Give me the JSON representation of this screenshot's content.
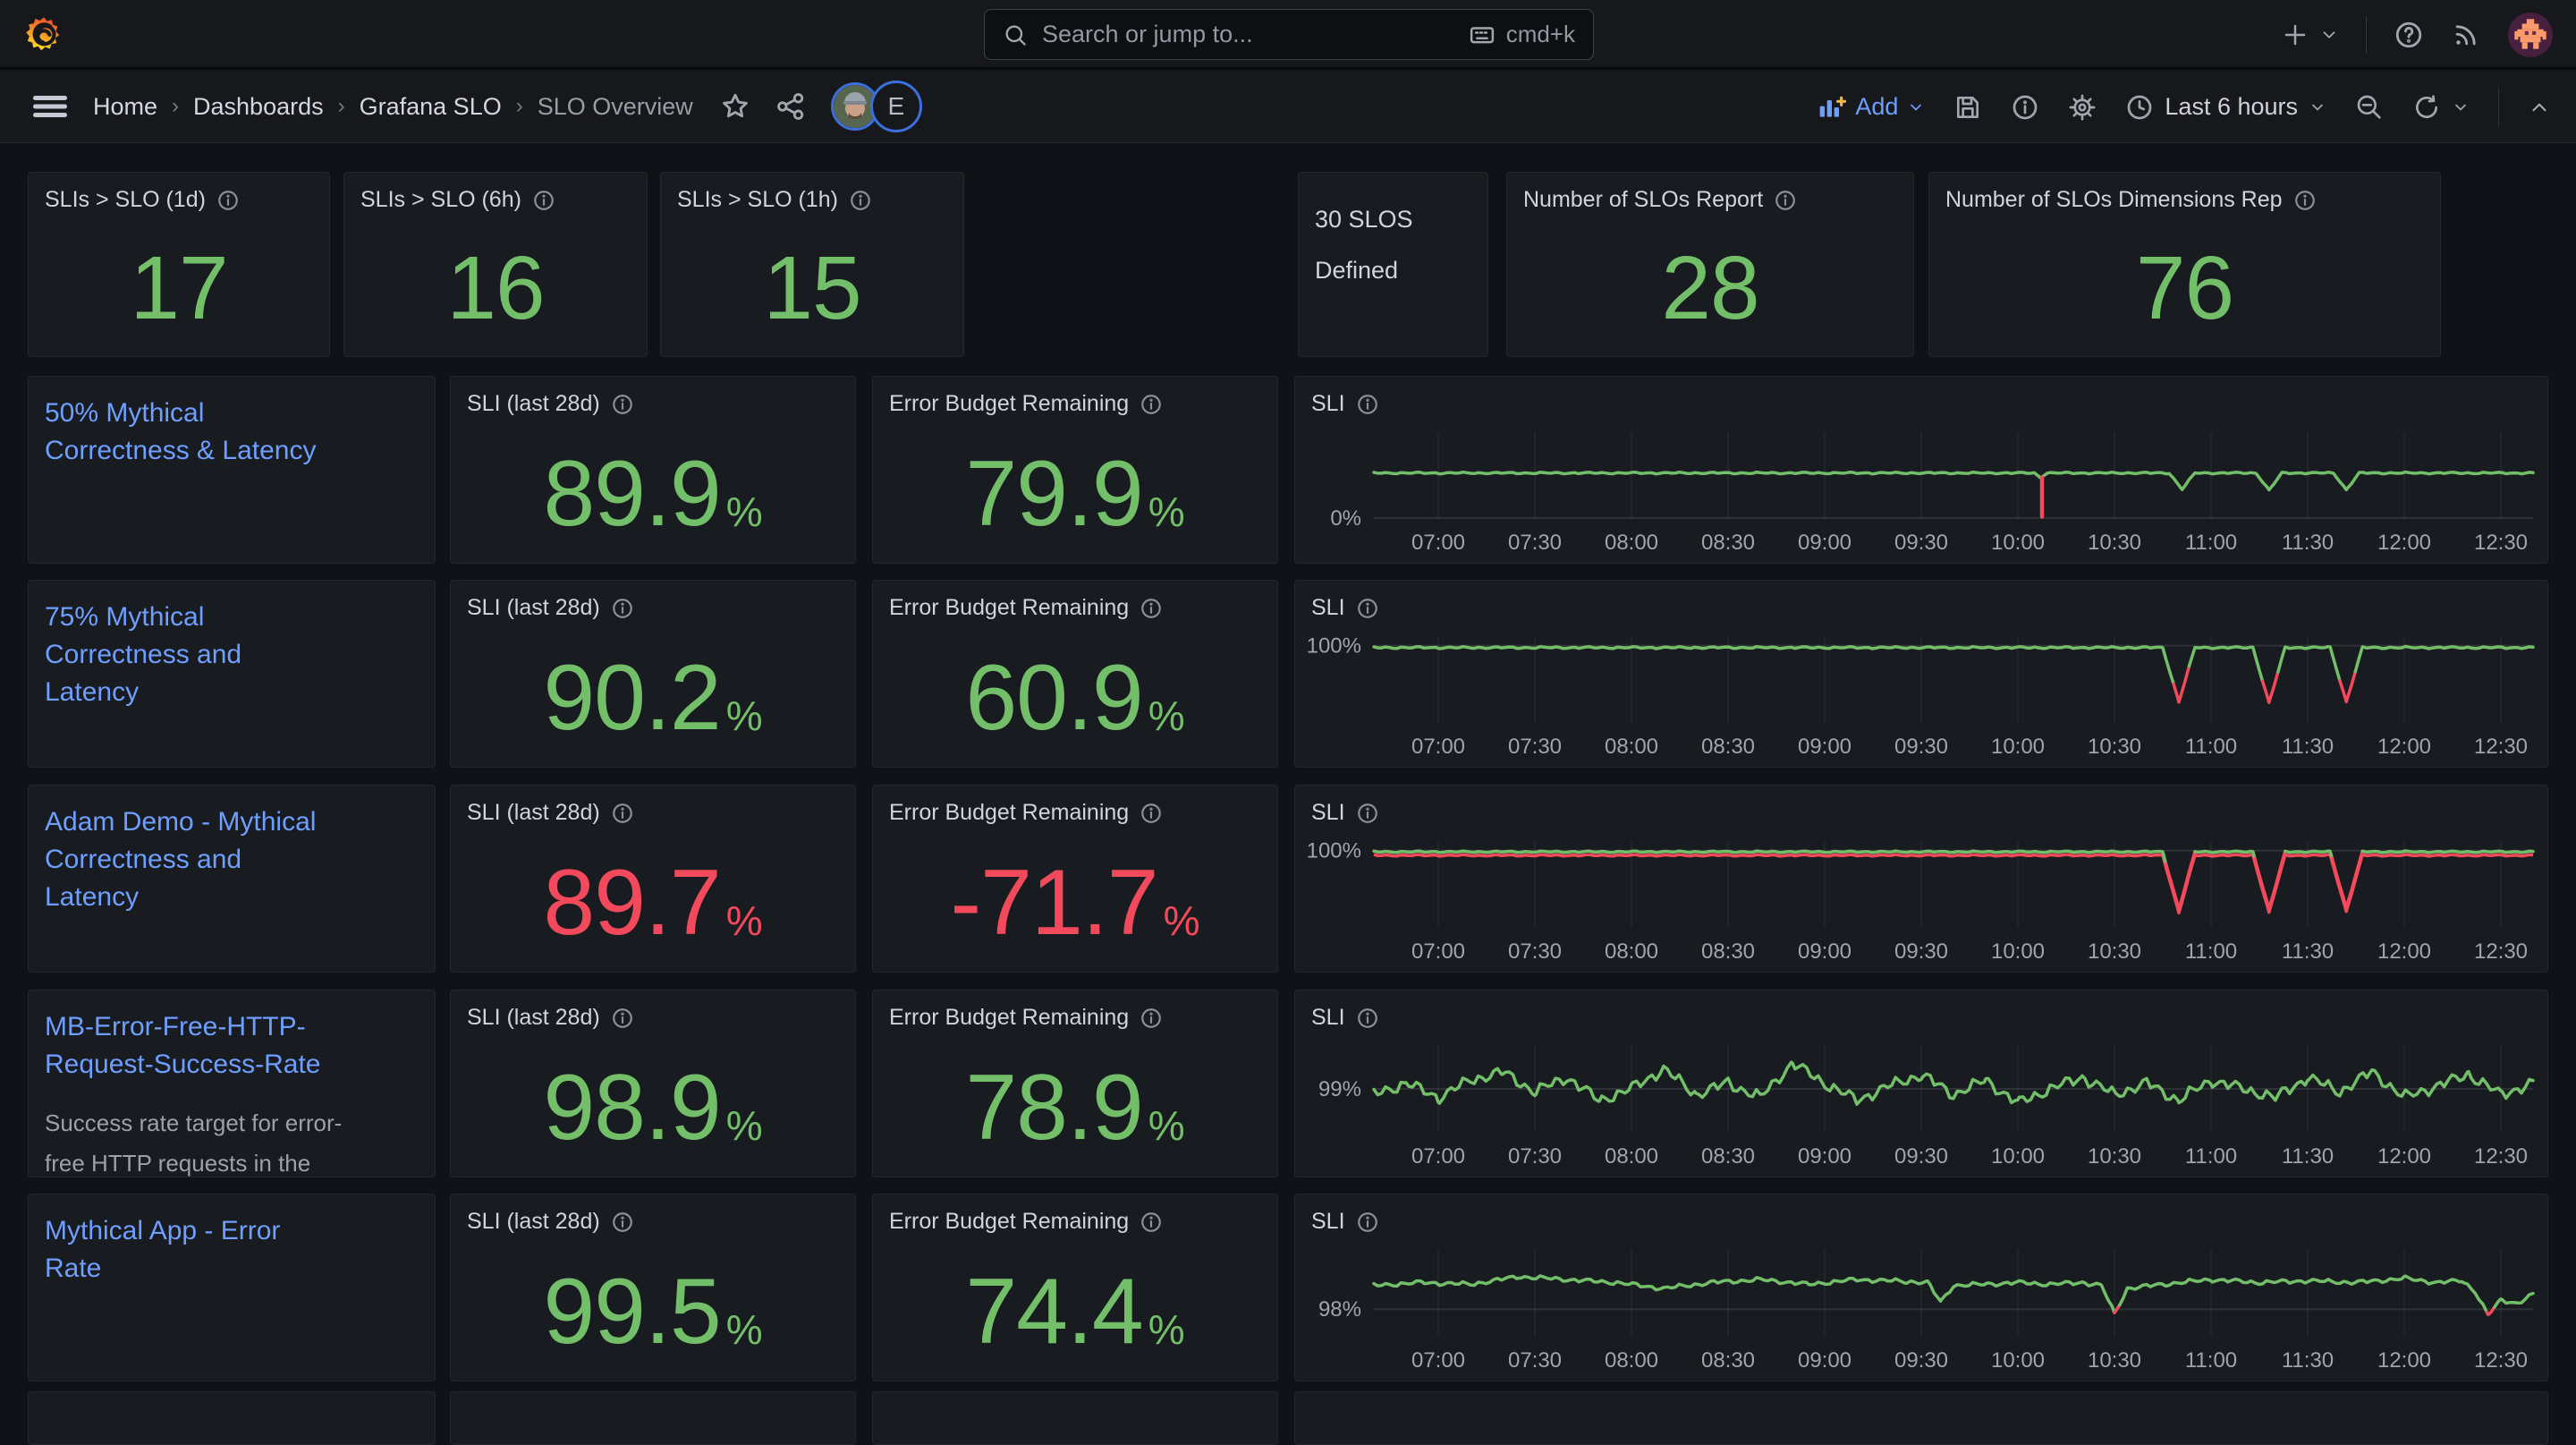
{
  "topbar": {
    "search_placeholder": "Search or jump to...",
    "search_shortcut": "cmd+k"
  },
  "breadcrumb": {
    "items": [
      "Home",
      "Dashboards",
      "Grafana SLO",
      "SLO Overview"
    ]
  },
  "user": {
    "secondary_avatar_letter": "E"
  },
  "toolbar": {
    "add_label": "Add",
    "time_range": "Last 6 hours"
  },
  "colors": {
    "green": "#73bf69",
    "red": "#f2495c",
    "link": "#6e9fff"
  },
  "percent_suffix": "%",
  "stat_panels": [
    {
      "title": "SLIs > SLO (1d)",
      "value": "17",
      "color": "green"
    },
    {
      "title": "SLIs > SLO (6h)",
      "value": "16",
      "color": "green"
    },
    {
      "title": "SLIs > SLO (1h)",
      "value": "15",
      "color": "green"
    }
  ],
  "defined_panel": {
    "text": "30 SLOS\nDefined"
  },
  "count_panels": [
    {
      "title": "Number of SLOs Report",
      "value": "28",
      "color": "green"
    },
    {
      "title": "Number of SLOs Dimensions Rep",
      "value": "76",
      "color": "green"
    }
  ],
  "slo_rows": [
    {
      "name": "50% Mythical\nCorrectness & Latency",
      "desc": "",
      "sli_title": "SLI (last 28d)",
      "sli": "89.9",
      "sli_color": "green",
      "ebr_title": "Error Budget Remaining",
      "ebr": "79.9",
      "ebr_color": "green",
      "chart_title": "SLI"
    },
    {
      "name": "75% Mythical\nCorrectness and\nLatency",
      "desc": "",
      "sli_title": "SLI (last 28d)",
      "sli": "90.2",
      "sli_color": "green",
      "ebr_title": "Error Budget Remaining",
      "ebr": "60.9",
      "ebr_color": "green",
      "chart_title": "SLI"
    },
    {
      "name": "Adam Demo - Mythical\nCorrectness and\nLatency",
      "desc": "",
      "sli_title": "SLI (last 28d)",
      "sli": "89.7",
      "sli_color": "red",
      "ebr_title": "Error Budget Remaining",
      "ebr": "-71.7",
      "ebr_color": "red",
      "chart_title": "SLI"
    },
    {
      "name": "MB-Error-Free-HTTP-\nRequest-Success-Rate",
      "desc": "Success rate target for error-\nfree HTTP requests in the",
      "sli_title": "SLI (last 28d)",
      "sli": "98.9",
      "sli_color": "green",
      "ebr_title": "Error Budget Remaining",
      "ebr": "78.9",
      "ebr_color": "green",
      "chart_title": "SLI"
    },
    {
      "name": "Mythical App - Error\nRate",
      "desc": "",
      "sli_title": "SLI (last 28d)",
      "sli": "99.5",
      "sli_color": "green",
      "ebr_title": "Error Budget Remaining",
      "ebr": "74.4",
      "ebr_color": "green",
      "chart_title": "SLI"
    }
  ],
  "chart_data": [
    {
      "type": "line",
      "title": "SLI",
      "x_domain": [
        400,
        760
      ],
      "x_tick_minutes": [
        420,
        450,
        480,
        510,
        540,
        570,
        600,
        630,
        660,
        690,
        720,
        750
      ],
      "x_tick_labels": [
        "07:00",
        "07:30",
        "08:00",
        "08:30",
        "09:00",
        "09:30",
        "10:00",
        "10:30",
        "11:00",
        "11:30",
        "12:00",
        "12:30"
      ],
      "y_domain": [
        0,
        185
      ],
      "y_tick": {
        "value": 0,
        "label": "0%"
      },
      "threshold": null,
      "jitter": 2.2,
      "points": [
        [
          400,
          97
        ],
        [
          605,
          97
        ],
        [
          607,
          88
        ],
        [
          609,
          97
        ],
        [
          647,
          97
        ],
        [
          651,
          62
        ],
        [
          655,
          97
        ],
        [
          674,
          97
        ],
        [
          678,
          60
        ],
        [
          682,
          97
        ],
        [
          698,
          97
        ],
        [
          702,
          61
        ],
        [
          706,
          97
        ],
        [
          760,
          97
        ]
      ],
      "red_spikes": [
        [
          607.5,
          88,
          3
        ]
      ]
    },
    {
      "type": "line",
      "title": "SLI",
      "x_domain": [
        400,
        760
      ],
      "x_tick_minutes": [
        420,
        450,
        480,
        510,
        540,
        570,
        600,
        630,
        660,
        690,
        720,
        750
      ],
      "x_tick_labels": [
        "07:00",
        "07:30",
        "08:00",
        "08:30",
        "09:00",
        "09:30",
        "10:00",
        "10:30",
        "11:00",
        "11:30",
        "12:00",
        "12:30"
      ],
      "y_domain": [
        68,
        104
      ],
      "y_tick": {
        "value": 100,
        "label": "100%"
      },
      "threshold": 86,
      "jitter": 0.5,
      "points": [
        [
          400,
          99.2
        ],
        [
          645,
          99.2
        ],
        [
          650,
          76.5
        ],
        [
          655,
          99.2
        ],
        [
          673,
          99.2
        ],
        [
          678,
          76
        ],
        [
          683,
          99.2
        ],
        [
          697,
          99.2
        ],
        [
          702,
          76.5
        ],
        [
          707,
          99.2
        ],
        [
          760,
          99.2
        ]
      ]
    },
    {
      "type": "line",
      "title": "SLI",
      "x_domain": [
        400,
        760
      ],
      "x_tick_minutes": [
        420,
        450,
        480,
        510,
        540,
        570,
        600,
        630,
        660,
        690,
        720,
        750
      ],
      "x_tick_labels": [
        "07:00",
        "07:30",
        "08:00",
        "08:30",
        "09:00",
        "09:30",
        "10:00",
        "10:30",
        "11:00",
        "11:30",
        "12:00",
        "12:30"
      ],
      "y_domain": [
        68,
        104
      ],
      "y_tick": {
        "value": 100,
        "label": "100%"
      },
      "threshold": 99.0,
      "jitter": 0.4,
      "underlay": true,
      "points": [
        [
          400,
          99.5
        ],
        [
          645,
          99.5
        ],
        [
          650,
          75.5
        ],
        [
          655,
          99.5
        ],
        [
          673,
          99.5
        ],
        [
          678,
          75.5
        ],
        [
          683,
          99.5
        ],
        [
          697,
          99.5
        ],
        [
          702,
          76
        ],
        [
          707,
          99.5
        ],
        [
          760,
          99.5
        ]
      ]
    },
    {
      "type": "line",
      "title": "SLI",
      "x_domain": [
        400,
        760
      ],
      "x_tick_minutes": [
        420,
        450,
        480,
        510,
        540,
        570,
        600,
        630,
        660,
        690,
        720,
        750
      ],
      "x_tick_labels": [
        "07:00",
        "07:30",
        "08:00",
        "08:30",
        "09:00",
        "09:30",
        "10:00",
        "10:30",
        "11:00",
        "11:30",
        "12:00",
        "12:30"
      ],
      "y_domain": [
        98.25,
        99.75
      ],
      "y_tick": {
        "value": 99,
        "label": "99%"
      },
      "threshold": null,
      "jitter": 0.13,
      "points": [
        [
          400,
          98.9
        ],
        [
          410,
          99.1
        ],
        [
          420,
          98.85
        ],
        [
          430,
          99.15
        ],
        [
          440,
          99.3
        ],
        [
          450,
          98.95
        ],
        [
          460,
          99.2
        ],
        [
          470,
          98.8
        ],
        [
          480,
          99.0
        ],
        [
          490,
          99.35
        ],
        [
          500,
          98.9
        ],
        [
          510,
          99.1
        ],
        [
          520,
          98.85
        ],
        [
          530,
          99.45
        ],
        [
          540,
          99.1
        ],
        [
          550,
          98.8
        ],
        [
          560,
          99.05
        ],
        [
          570,
          99.25
        ],
        [
          580,
          98.9
        ],
        [
          590,
          99.15
        ],
        [
          600,
          98.75
        ],
        [
          610,
          99.0
        ],
        [
          620,
          99.2
        ],
        [
          630,
          98.9
        ],
        [
          640,
          99.1
        ],
        [
          650,
          98.8
        ],
        [
          660,
          99.15
        ],
        [
          670,
          99.0
        ],
        [
          680,
          98.85
        ],
        [
          690,
          99.2
        ],
        [
          700,
          98.95
        ],
        [
          710,
          99.3
        ],
        [
          720,
          98.85
        ],
        [
          730,
          99.05
        ],
        [
          740,
          99.25
        ],
        [
          750,
          98.9
        ],
        [
          760,
          99.1
        ]
      ]
    },
    {
      "type": "line",
      "title": "SLI",
      "x_domain": [
        400,
        760
      ],
      "x_tick_minutes": [
        420,
        450,
        480,
        510,
        540,
        570,
        600,
        630,
        660,
        690,
        720,
        750
      ],
      "x_tick_labels": [
        "07:00",
        "07:30",
        "08:00",
        "08:30",
        "09:00",
        "09:30",
        "10:00",
        "10:30",
        "11:00",
        "11:30",
        "12:00",
        "12:30"
      ],
      "y_domain": [
        97.55,
        99.0
      ],
      "y_tick": {
        "value": 98,
        "label": "98%"
      },
      "threshold": 98,
      "jitter": 0.045,
      "points": [
        [
          400,
          98.4
        ],
        [
          415,
          98.45
        ],
        [
          430,
          98.42
        ],
        [
          445,
          98.55
        ],
        [
          460,
          98.5
        ],
        [
          475,
          98.45
        ],
        [
          490,
          98.35
        ],
        [
          505,
          98.45
        ],
        [
          520,
          98.5
        ],
        [
          535,
          98.42
        ],
        [
          550,
          98.5
        ],
        [
          565,
          98.47
        ],
        [
          572,
          98.45
        ],
        [
          576,
          98.12
        ],
        [
          580,
          98.4
        ],
        [
          590,
          98.42
        ],
        [
          600,
          98.45
        ],
        [
          610,
          98.42
        ],
        [
          620,
          98.45
        ],
        [
          626,
          98.4
        ],
        [
          630,
          97.92
        ],
        [
          634,
          98.35
        ],
        [
          645,
          98.42
        ],
        [
          660,
          98.5
        ],
        [
          675,
          98.45
        ],
        [
          690,
          98.48
        ],
        [
          705,
          98.45
        ],
        [
          720,
          98.52
        ],
        [
          730,
          98.45
        ],
        [
          738,
          98.48
        ],
        [
          742,
          98.3
        ],
        [
          746,
          97.9
        ],
        [
          750,
          98.15
        ],
        [
          755,
          98.1
        ],
        [
          760,
          98.25
        ]
      ]
    }
  ]
}
